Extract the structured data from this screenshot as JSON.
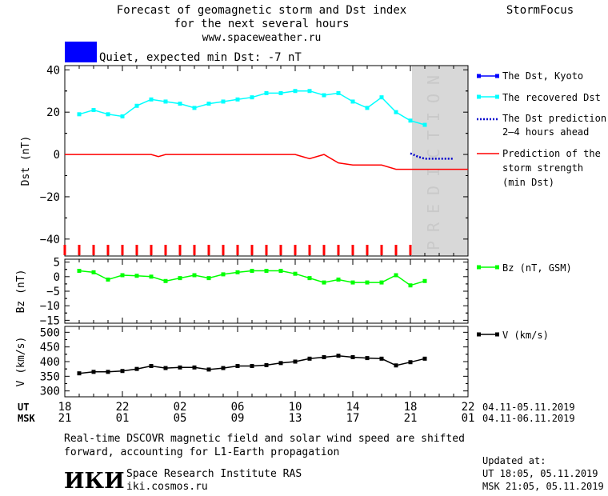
{
  "header": {
    "title_line1": "Forecast of geomagnetic storm and Dst index",
    "title_line2": "for the next several hours",
    "url": "www.spaceweather.ru",
    "brand": "StormFocus",
    "status_color": "#0000ff",
    "status_text": "Quiet, expected min Dst: -7 nT"
  },
  "prediction_label": [
    "P",
    "R",
    "E",
    "D",
    "I",
    "C",
    "T",
    "I",
    "O",
    "N"
  ],
  "x_axis": {
    "ut_label": "UT",
    "msk_label": "MSK",
    "ut_ticks": [
      "18",
      "22",
      "02",
      "06",
      "10",
      "14",
      "18",
      "22"
    ],
    "msk_ticks": [
      "21",
      "01",
      "05",
      "09",
      "13",
      "17",
      "21",
      "01"
    ],
    "ut_range": "04.11-05.11.2019",
    "msk_range": "04.11-06.11.2019"
  },
  "footer": {
    "note_line1": "Real-time DSCOVR magnetic field and solar wind speed are shifted",
    "note_line2": "forward, accounting for L1-Earth propagation",
    "logo": "ИКИ",
    "institute": "Space Research Institute RAS",
    "site": "iki.cosmos.ru",
    "updated_label": "Updated at:",
    "updated_ut": "UT   18:05, 05.11.2019",
    "updated_msk": "MSK 21:05, 05.11.2019"
  },
  "chart_data": [
    {
      "type": "line",
      "ylabel": "Dst (nT)",
      "ylim": [
        -48,
        42
      ],
      "yticks": [
        40,
        20,
        0,
        -20,
        -40
      ],
      "ytick_labels": [
        "40",
        "20",
        "0",
        "−20",
        "−40"
      ],
      "x_hours_range": [
        -1,
        27
      ],
      "prediction_start_hour": 23,
      "legend": [
        {
          "label": "The Dst, Kyoto",
          "color": "#0000ff",
          "style": "line-marker"
        },
        {
          "label": "The recovered Dst",
          "color": "#00ffff",
          "style": "line-marker"
        },
        {
          "label": "The Dst prediction\n2–4 hours ahead",
          "color": "#0000cc",
          "style": "dotted"
        },
        {
          "label": "Prediction of the\nstorm strength\n(min Dst)",
          "color": "#ff0000",
          "style": "line"
        }
      ],
      "series": [
        {
          "name": "The recovered Dst",
          "color": "#00ffff",
          "x": [
            0,
            1,
            2,
            3,
            4,
            5,
            6,
            7,
            8,
            9,
            10,
            11,
            12,
            13,
            14,
            15,
            16,
            17,
            18,
            19,
            20,
            21,
            22,
            23,
            24
          ],
          "y": [
            19,
            21,
            19,
            18,
            23,
            26,
            25,
            24,
            22,
            24,
            25,
            26,
            27,
            29,
            29,
            30,
            30,
            28,
            29,
            25,
            22,
            27,
            20,
            16,
            14
          ]
        },
        {
          "name": "The Dst prediction 2–4 hours ahead",
          "color": "#0000cc",
          "dashed": true,
          "x": [
            23,
            23.5,
            24,
            24.5,
            25,
            25.5,
            26
          ],
          "y": [
            0.5,
            -1,
            -2,
            -2,
            -2,
            -2,
            -2
          ]
        },
        {
          "name": "Prediction of the storm strength (min Dst)",
          "color": "#ff0000",
          "x": [
            -1,
            5,
            5.5,
            6,
            10,
            15,
            16,
            17,
            18,
            19,
            20,
            21,
            22,
            27
          ],
          "y": [
            0,
            0,
            -1,
            0,
            0,
            0,
            -2,
            0,
            -4,
            -5,
            -5,
            -5,
            -7,
            -7
          ]
        }
      ]
    },
    {
      "type": "line",
      "ylabel": "Bz (nT)",
      "ylim": [
        -16,
        6
      ],
      "yticks": [
        5,
        0,
        -5,
        -10,
        -15
      ],
      "ytick_labels": [
        "5",
        "0",
        "−5",
        "−10",
        "−15"
      ],
      "x_hours_range": [
        -1,
        27
      ],
      "legend": [
        {
          "label": "Bz (nT, GSM)",
          "color": "#00ff00"
        }
      ],
      "series": [
        {
          "name": "Bz (nT, GSM)",
          "color": "#00ff00",
          "x": [
            0,
            1,
            2,
            3,
            4,
            5,
            6,
            7,
            8,
            9,
            10,
            11,
            12,
            13,
            14,
            15,
            16,
            17,
            18,
            19,
            20,
            21,
            22,
            23,
            24
          ],
          "y": [
            2,
            1.5,
            -1,
            0.5,
            0.3,
            0,
            -1.5,
            -0.5,
            0.5,
            -0.5,
            0.8,
            1.5,
            2,
            2,
            2,
            1,
            -0.5,
            -2,
            -1,
            -2,
            -2,
            -2,
            0.5,
            -3,
            -1.5
          ]
        }
      ]
    },
    {
      "type": "line",
      "ylabel": "V (km/s)",
      "ylim": [
        280,
        520
      ],
      "yticks": [
        500,
        450,
        400,
        350,
        300
      ],
      "ytick_labels": [
        "500",
        "450",
        "400",
        "350",
        "300"
      ],
      "x_hours_range": [
        -1,
        27
      ],
      "legend": [
        {
          "label": "V (km/s)",
          "color": "#000000"
        }
      ],
      "series": [
        {
          "name": "V (km/s)",
          "color": "#000000",
          "x": [
            0,
            1,
            2,
            3,
            4,
            5,
            6,
            7,
            8,
            9,
            10,
            11,
            12,
            13,
            14,
            15,
            16,
            17,
            18,
            19,
            20,
            21,
            22,
            23,
            24
          ],
          "y": [
            360,
            365,
            365,
            368,
            375,
            385,
            378,
            380,
            380,
            373,
            378,
            385,
            385,
            388,
            395,
            400,
            410,
            415,
            420,
            415,
            412,
            410,
            387,
            398,
            410
          ]
        }
      ]
    }
  ]
}
